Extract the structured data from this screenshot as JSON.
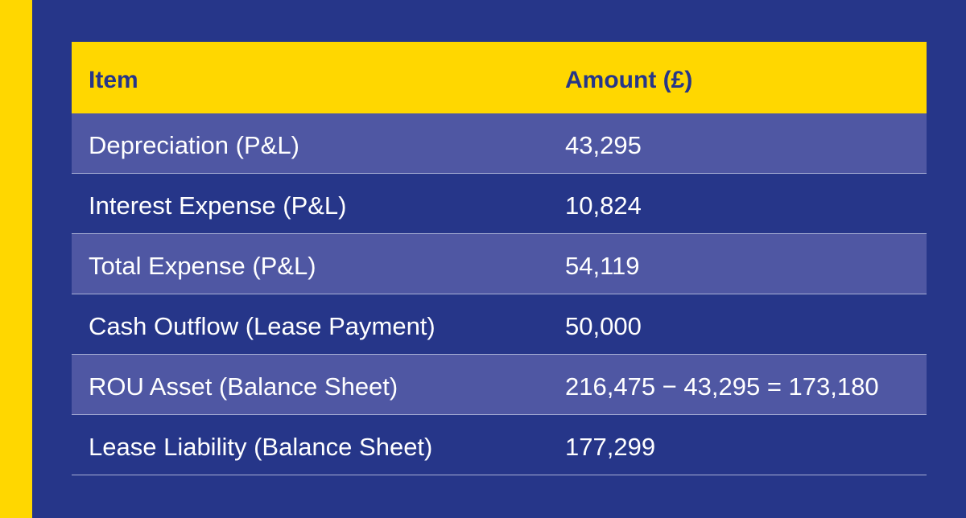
{
  "colors": {
    "background": "#263689",
    "accent": "#FFD700",
    "shaded_row": "#4f57a3",
    "header_text": "#263689",
    "body_text": "#ffffff"
  },
  "table": {
    "headers": {
      "item": "Item",
      "amount": "Amount (£)"
    },
    "rows": [
      {
        "item": "Depreciation (P&L)",
        "amount": "43,295"
      },
      {
        "item": "Interest Expense (P&L)",
        "amount": "10,824"
      },
      {
        "item": "Total Expense (P&L)",
        "amount": "54,119"
      },
      {
        "item": "Cash Outflow (Lease Payment)",
        "amount": "50,000"
      },
      {
        "item": "ROU Asset (Balance Sheet)",
        "amount": "216,475 − 43,295 = 173,180"
      },
      {
        "item": "Lease Liability (Balance Sheet)",
        "amount": "177,299"
      }
    ]
  }
}
